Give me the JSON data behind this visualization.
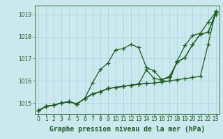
{
  "title": "Graphe pression niveau de la mer (hPa)",
  "background_color": "#cce8ef",
  "grid_color": "#b0d8e0",
  "line_color": "#1e5c1e",
  "xlim": [
    -0.5,
    23.5
  ],
  "ylim": [
    1014.5,
    1019.4
  ],
  "yticks": [
    1015,
    1016,
    1017,
    1018,
    1019
  ],
  "xticks": [
    0,
    1,
    2,
    3,
    4,
    5,
    6,
    7,
    8,
    9,
    10,
    11,
    12,
    13,
    14,
    15,
    16,
    17,
    18,
    19,
    20,
    21,
    22,
    23
  ],
  "series": [
    [
      1014.65,
      1014.85,
      1014.9,
      1015.0,
      1015.05,
      1014.95,
      1015.2,
      1015.4,
      1015.5,
      1015.65,
      1015.7,
      1015.75,
      1015.8,
      1015.85,
      1015.88,
      1015.9,
      1015.95,
      1016.0,
      1016.05,
      1016.1,
      1016.15,
      1016.2,
      1017.65,
      1019.15
    ],
    [
      1014.65,
      1014.85,
      1014.9,
      1015.0,
      1015.05,
      1014.95,
      1015.2,
      1015.9,
      1016.5,
      1016.8,
      1017.4,
      1017.45,
      1017.65,
      1017.5,
      1016.6,
      1016.45,
      1016.05,
      1016.15,
      1016.85,
      1017.05,
      1017.65,
      1018.1,
      1018.2,
      1019.0
    ],
    [
      1014.65,
      1014.85,
      1014.9,
      1015.0,
      1015.05,
      1014.95,
      1015.2,
      1015.4,
      1015.5,
      1015.65,
      1015.7,
      1015.75,
      1015.8,
      1015.85,
      1015.88,
      1015.9,
      1015.95,
      1016.0,
      1016.9,
      1017.6,
      1018.05,
      1018.15,
      1018.65,
      1019.1
    ],
    [
      1014.65,
      1014.85,
      1014.9,
      1015.0,
      1015.05,
      1014.95,
      1015.2,
      1015.4,
      1015.5,
      1015.65,
      1015.7,
      1015.75,
      1015.8,
      1015.85,
      1016.5,
      1016.1,
      1016.05,
      1016.2,
      1016.85,
      1017.05,
      1017.65,
      1018.1,
      1018.2,
      1019.1
    ]
  ],
  "title_fontsize": 7,
  "tick_fontsize": 5.5,
  "ylabel_fontsize": 6
}
